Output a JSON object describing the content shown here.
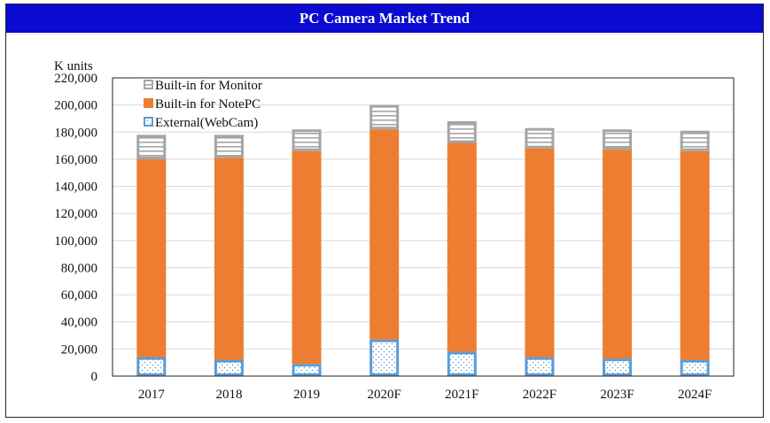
{
  "header": {
    "title": "PC Camera Market Trend"
  },
  "chart_data": {
    "type": "bar",
    "stacked": true,
    "title": "PC Camera Market Trend",
    "ylabel": "K units",
    "xlabel": "",
    "ylim": [
      0,
      220000
    ],
    "y_ticks": [
      "0",
      "20,000",
      "40,000",
      "60,000",
      "80,000",
      "100,000",
      "120,000",
      "140,000",
      "160,000",
      "180,000",
      "200,000",
      "220,000"
    ],
    "categories": [
      "2017",
      "2018",
      "2019",
      "2020F",
      "2021F",
      "2022F",
      "2023F",
      "2024F"
    ],
    "series": [
      {
        "name": "External(WebCam)",
        "color": "#5b9bd5",
        "pattern": "dots",
        "values": [
          14000,
          12000,
          9000,
          27000,
          18000,
          14000,
          13000,
          12000
        ]
      },
      {
        "name": "Built-in for NotePC",
        "color": "#ed7d31",
        "pattern": "solid",
        "values": [
          146000,
          149000,
          157000,
          155000,
          154000,
          154000,
          154000,
          154000
        ]
      },
      {
        "name": "Built-in for Monitor",
        "color": "#a5a5a5",
        "pattern": "stripes",
        "values": [
          18000,
          17000,
          16000,
          18000,
          16000,
          15000,
          15000,
          15000
        ]
      }
    ],
    "legend_order": [
      "Built-in for Monitor",
      "Built-in for NotePC",
      "External(WebCam)"
    ],
    "legend_position": "top-left",
    "grid": true
  }
}
